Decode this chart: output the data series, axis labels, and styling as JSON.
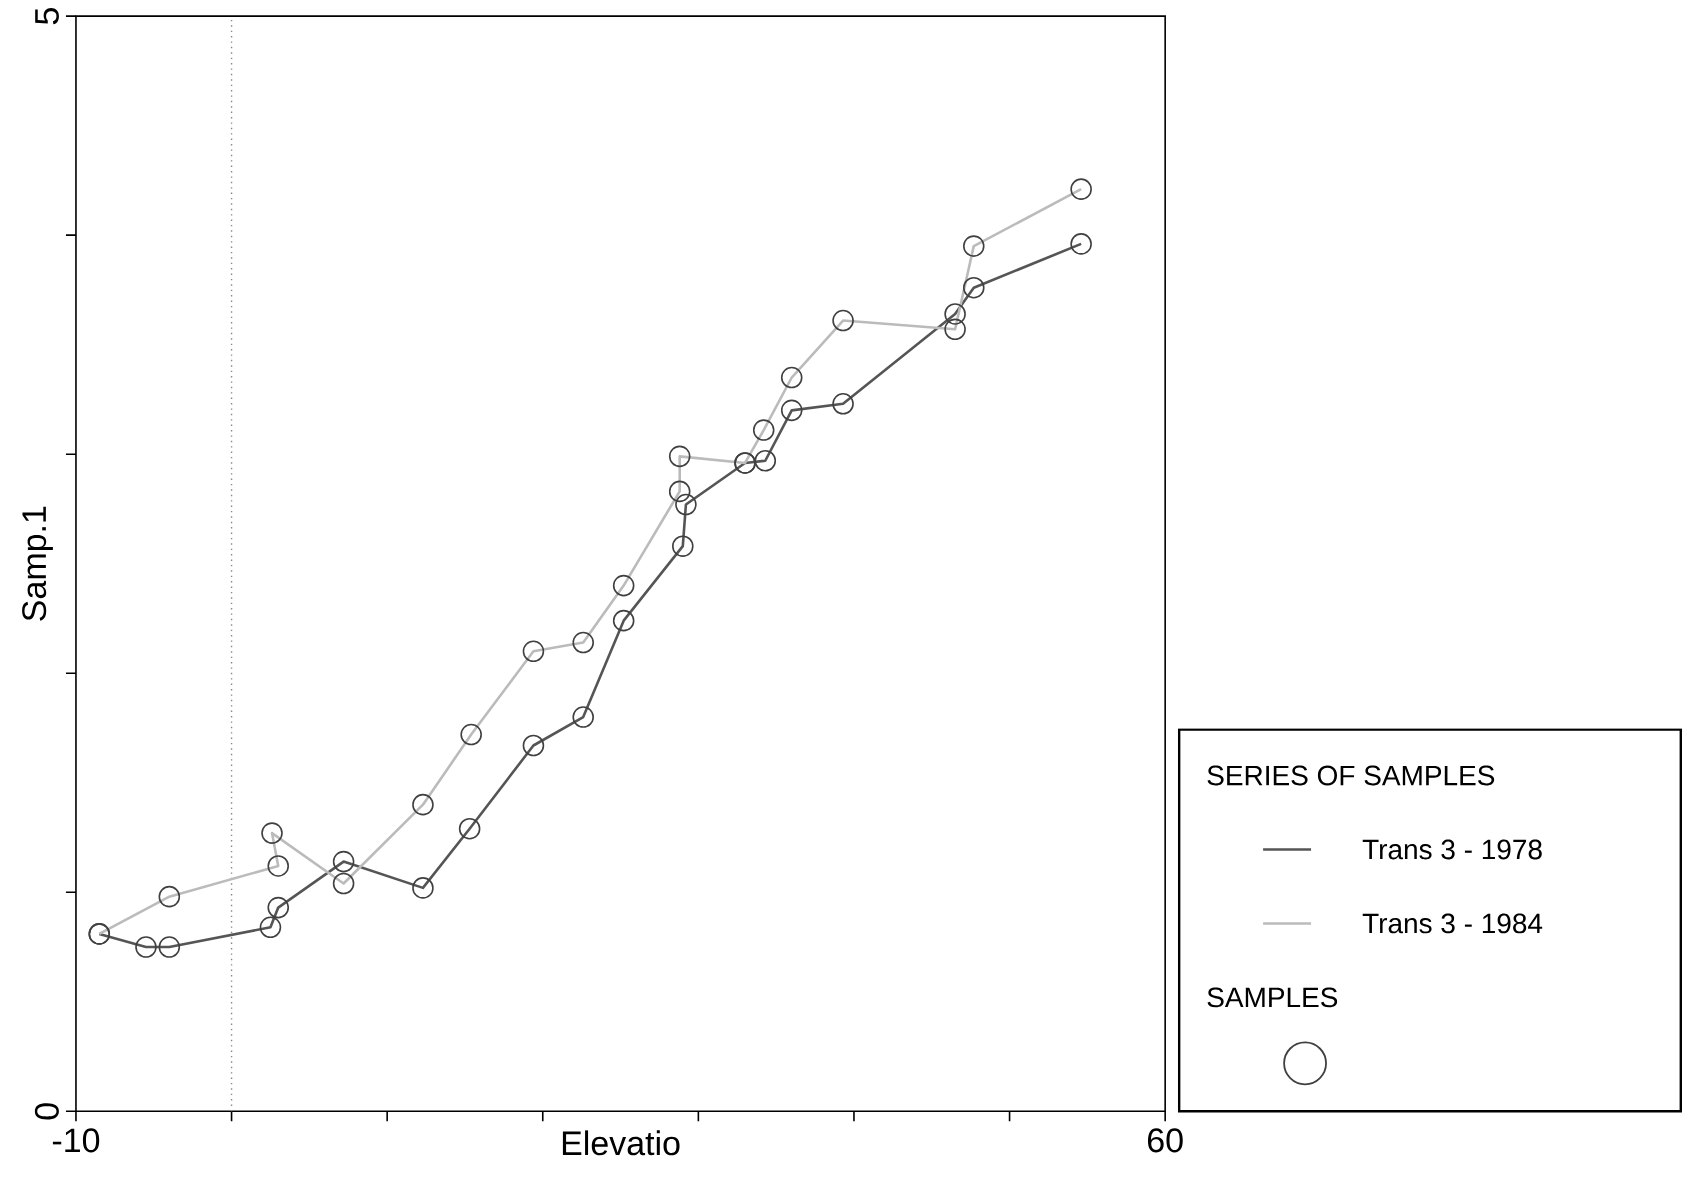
{
  "chart_data": {
    "type": "line",
    "xlabel": "Elevatio",
    "ylabel": "Samp.1",
    "legend_title": "SERIES OF SAMPLES",
    "annotations": [
      "SAMPLES"
    ],
    "xlim": [
      -10,
      60
    ],
    "ylim": [
      0,
      5
    ],
    "xticks": [
      -10,
      {
        "value": 0,
        "label": null
      },
      {
        "value": 10,
        "label": null
      },
      {
        "value": 20,
        "label": null
      },
      {
        "value": 30,
        "label": null
      },
      {
        "value": 40,
        "label": null
      },
      {
        "value": 50,
        "label": null
      },
      60
    ],
    "yticks": [
      0,
      {
        "value": 1,
        "label": null
      },
      {
        "value": 2,
        "label": null
      },
      {
        "value": 3,
        "label": null
      },
      {
        "value": 4,
        "label": null
      },
      5
    ],
    "ref_lines": [
      {
        "axis": "x",
        "value": 0,
        "line_style": "dotted",
        "color": "#888888"
      }
    ],
    "marker": "circle",
    "legend": "bottom right",
    "series": [
      {
        "name": "Trans 3 - 1978",
        "color": "#555555",
        "x": [
          -8.5,
          -5.5,
          -4.0,
          2.5,
          3.0,
          7.2,
          12.3,
          15.3,
          19.4,
          22.6,
          25.2,
          29.0,
          29.2,
          33.0,
          34.3,
          36.0,
          39.3,
          46.5,
          47.7,
          54.6
        ],
        "values": [
          0.81,
          0.75,
          0.75,
          0.84,
          0.93,
          1.14,
          1.02,
          1.29,
          1.67,
          1.8,
          2.24,
          2.58,
          2.77,
          2.96,
          2.97,
          3.2,
          3.23,
          3.64,
          3.76,
          3.96
        ]
      },
      {
        "name": "Trans 3 - 1984",
        "color": "#bbbbbb",
        "x": [
          -8.5,
          -4.0,
          3.0,
          2.6,
          7.2,
          12.3,
          15.4,
          19.4,
          22.6,
          25.2,
          28.8,
          28.8,
          33.0,
          34.2,
          36.0,
          39.3,
          46.5,
          47.7,
          54.6
        ],
        "values": [
          0.81,
          0.98,
          1.12,
          1.27,
          1.04,
          1.4,
          1.72,
          2.1,
          2.14,
          2.4,
          2.83,
          2.99,
          2.96,
          3.11,
          3.35,
          3.61,
          3.57,
          3.95,
          4.21
        ]
      }
    ]
  }
}
